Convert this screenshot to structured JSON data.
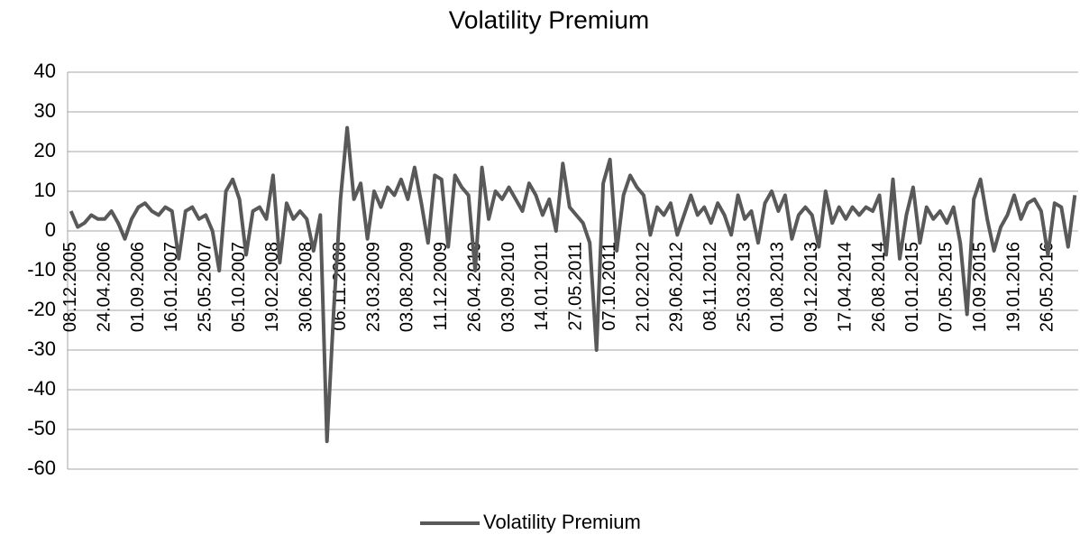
{
  "chart_data": {
    "type": "line",
    "title": "Volatility Premium",
    "categories": [
      "08.12.2005",
      null,
      null,
      null,
      null,
      "24.04.2006",
      null,
      null,
      null,
      null,
      "01.09.2006",
      null,
      null,
      null,
      null,
      "16.01.2007",
      null,
      null,
      null,
      null,
      "25.05.2007",
      null,
      null,
      null,
      null,
      "05.10.2007",
      null,
      null,
      null,
      null,
      "19.02.2008",
      null,
      null,
      null,
      null,
      "30.06.2008",
      null,
      null,
      null,
      null,
      "06.11.2008",
      null,
      null,
      null,
      null,
      "23.03.2009",
      null,
      null,
      null,
      null,
      "03.08.2009",
      null,
      null,
      null,
      null,
      "11.12.2009",
      null,
      null,
      null,
      null,
      "26.04.2010",
      null,
      null,
      null,
      null,
      "03.09.2010",
      null,
      null,
      null,
      null,
      "14.01.2011",
      null,
      null,
      null,
      null,
      "27.05.2011",
      null,
      null,
      null,
      null,
      "07.10.2011",
      null,
      null,
      null,
      null,
      "21.02.2012",
      null,
      null,
      null,
      null,
      "29.06.2012",
      null,
      null,
      null,
      null,
      "08.11.2012",
      null,
      null,
      null,
      null,
      "25.03.2013",
      null,
      null,
      null,
      null,
      "01.08.2013",
      null,
      null,
      null,
      null,
      "09.12.2013",
      null,
      null,
      null,
      null,
      "17.04.2014",
      null,
      null,
      null,
      null,
      "26.08.2014",
      null,
      null,
      null,
      null,
      "01.01.2015",
      null,
      null,
      null,
      null,
      "07.05.2015",
      null,
      null,
      null,
      null,
      "10.09.2015",
      null,
      null,
      null,
      null,
      "19.01.2016",
      null,
      null,
      null,
      null,
      "26.05.2016",
      null,
      null,
      null,
      null
    ],
    "series": [
      {
        "name": "Volatility Premium",
        "color": "#595959",
        "values": [
          5,
          1,
          2,
          4,
          3,
          3,
          5,
          2,
          -2,
          3,
          6,
          7,
          5,
          4,
          6,
          5,
          -7,
          5,
          6,
          3,
          4,
          0,
          -10,
          10,
          13,
          8,
          -6,
          5,
          6,
          3,
          14,
          -8,
          7,
          3,
          5,
          3,
          -5,
          4,
          -53,
          -20,
          8,
          26,
          8,
          12,
          -2,
          10,
          6,
          11,
          9,
          13,
          8,
          16,
          7,
          -3,
          14,
          13,
          -4,
          14,
          11,
          9,
          -10,
          16,
          3,
          10,
          8,
          11,
          8,
          5,
          12,
          9,
          4,
          8,
          0,
          17,
          6,
          4,
          2,
          -3,
          -30,
          12,
          18,
          -5,
          9,
          14,
          11,
          9,
          -1,
          6,
          4,
          7,
          -1,
          4,
          9,
          4,
          6,
          2,
          7,
          4,
          -1,
          9,
          3,
          5,
          -3,
          7,
          10,
          5,
          9,
          -2,
          4,
          6,
          4,
          -4,
          10,
          2,
          6,
          3,
          6,
          4,
          6,
          5,
          9,
          -6,
          13,
          -7,
          4,
          11,
          -3,
          6,
          3,
          5,
          2,
          6,
          -3,
          -21,
          8,
          13,
          3,
          -5,
          1,
          4,
          9,
          3,
          7,
          8,
          5,
          -6,
          7,
          6,
          -4,
          9
        ]
      }
    ],
    "ylim": [
      -60,
      40
    ],
    "yticks": [
      -60,
      -50,
      -40,
      -30,
      -20,
      -10,
      0,
      10,
      20,
      30,
      40
    ],
    "grid": true,
    "legend": "bottom"
  }
}
